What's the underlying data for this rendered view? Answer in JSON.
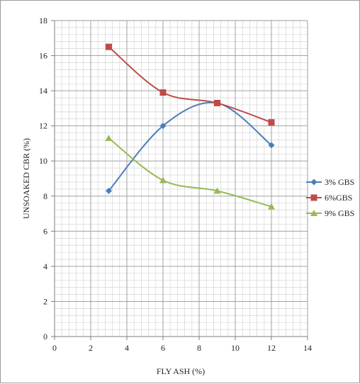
{
  "chart_data": {
    "type": "line",
    "title": "",
    "xlabel": "FLY ASH (%)",
    "ylabel": "UNSOAKED CBR (%)",
    "xlim": [
      0,
      14
    ],
    "ylim": [
      0,
      18
    ],
    "x_ticks": [
      0,
      2,
      4,
      6,
      8,
      10,
      12,
      14
    ],
    "y_ticks": [
      0,
      2,
      4,
      6,
      8,
      10,
      12,
      14,
      16,
      18
    ],
    "minor_grid": true,
    "smooth_lines": true,
    "legend_position": "right",
    "series": [
      {
        "name": "3% GBS",
        "color": "#4a7ebb",
        "marker": "diamond",
        "x": [
          3,
          6,
          9,
          12
        ],
        "y": [
          8.3,
          12.0,
          13.3,
          10.9
        ]
      },
      {
        "name": "6%GBS",
        "color": "#be4b48",
        "marker": "square",
        "x": [
          3,
          6,
          9,
          12
        ],
        "y": [
          16.5,
          13.9,
          13.3,
          12.2
        ]
      },
      {
        "name": "9% GBS",
        "color": "#98b954",
        "marker": "triangle",
        "x": [
          3,
          6,
          9,
          12
        ],
        "y": [
          11.3,
          8.9,
          8.3,
          7.4
        ]
      }
    ]
  }
}
